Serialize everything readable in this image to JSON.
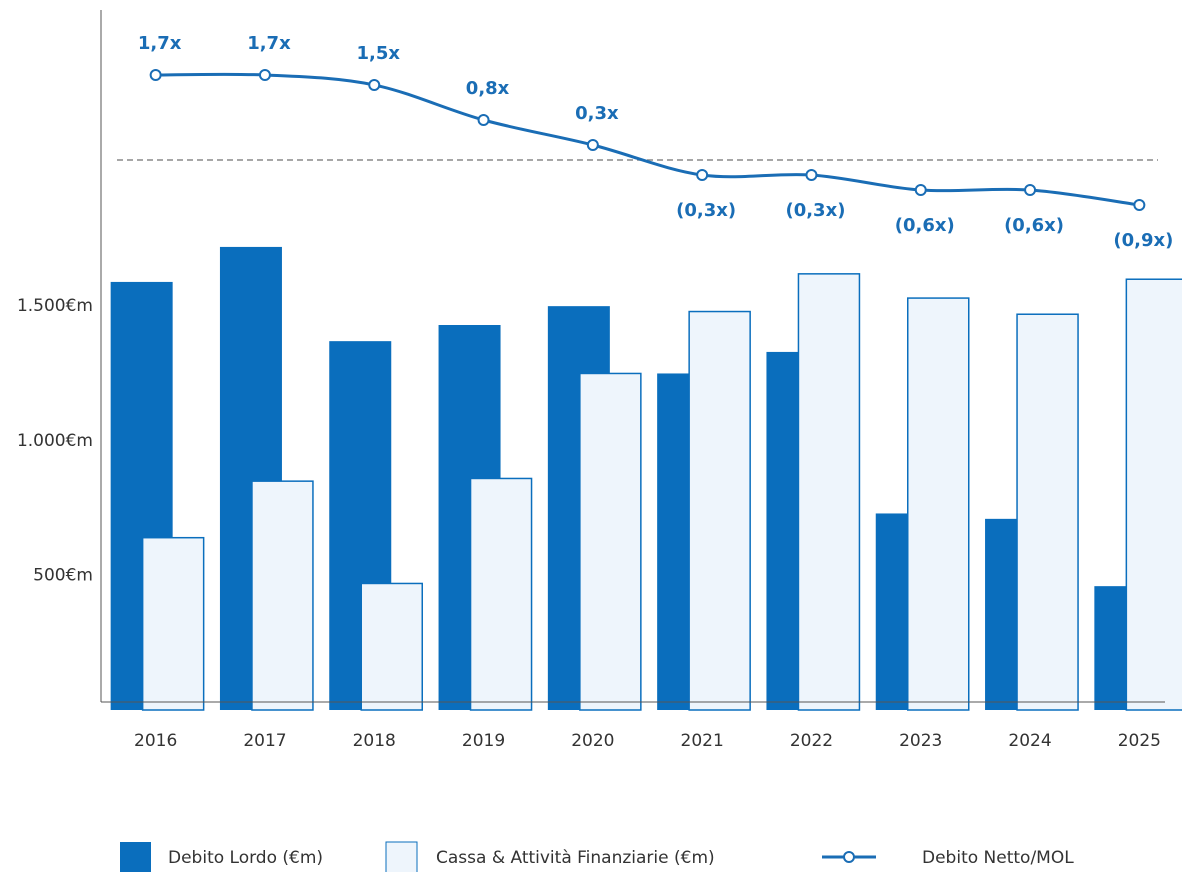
{
  "chart_data": {
    "type": "bar",
    "categories": [
      "2016",
      "2017",
      "2018",
      "2019",
      "2020",
      "2021",
      "2022",
      "2023",
      "2024",
      "2025"
    ],
    "series": [
      {
        "name": "Debito Lordo (€m)",
        "color": "#0a6ebd",
        "values": [
          1590,
          1720,
          1370,
          1430,
          1500,
          1250,
          1330,
          730,
          710,
          460
        ]
      },
      {
        "name": "Cassa & Attività Finanziarie (€m)",
        "color": "#eef5fc",
        "values": [
          640,
          850,
          470,
          860,
          1250,
          1480,
          1620,
          1530,
          1470,
          1600
        ]
      },
      {
        "name": "Debito Netto/MOL",
        "color": "#1a6db5",
        "type": "line",
        "axis": "y2",
        "values": [
          1.7,
          1.7,
          1.5,
          0.8,
          0.3,
          -0.3,
          -0.3,
          -0.6,
          -0.6,
          -0.9
        ],
        "value_labels": [
          "1,7x",
          "1,7x",
          "1,5x",
          "0,8x",
          "0,3x",
          "(0,3x)",
          "(0,3x)",
          "(0,6x)",
          "(0,6x)",
          "(0,9x)"
        ]
      }
    ],
    "ylim": [
      0,
      2600
    ],
    "yticks": [
      {
        "value": 500,
        "label": "500€m"
      },
      {
        "value": 1000,
        "label": "1.000€m"
      },
      {
        "value": 1500,
        "label": "1.500€m"
      }
    ],
    "y2lim": [
      -11,
      3
    ]
  }
}
